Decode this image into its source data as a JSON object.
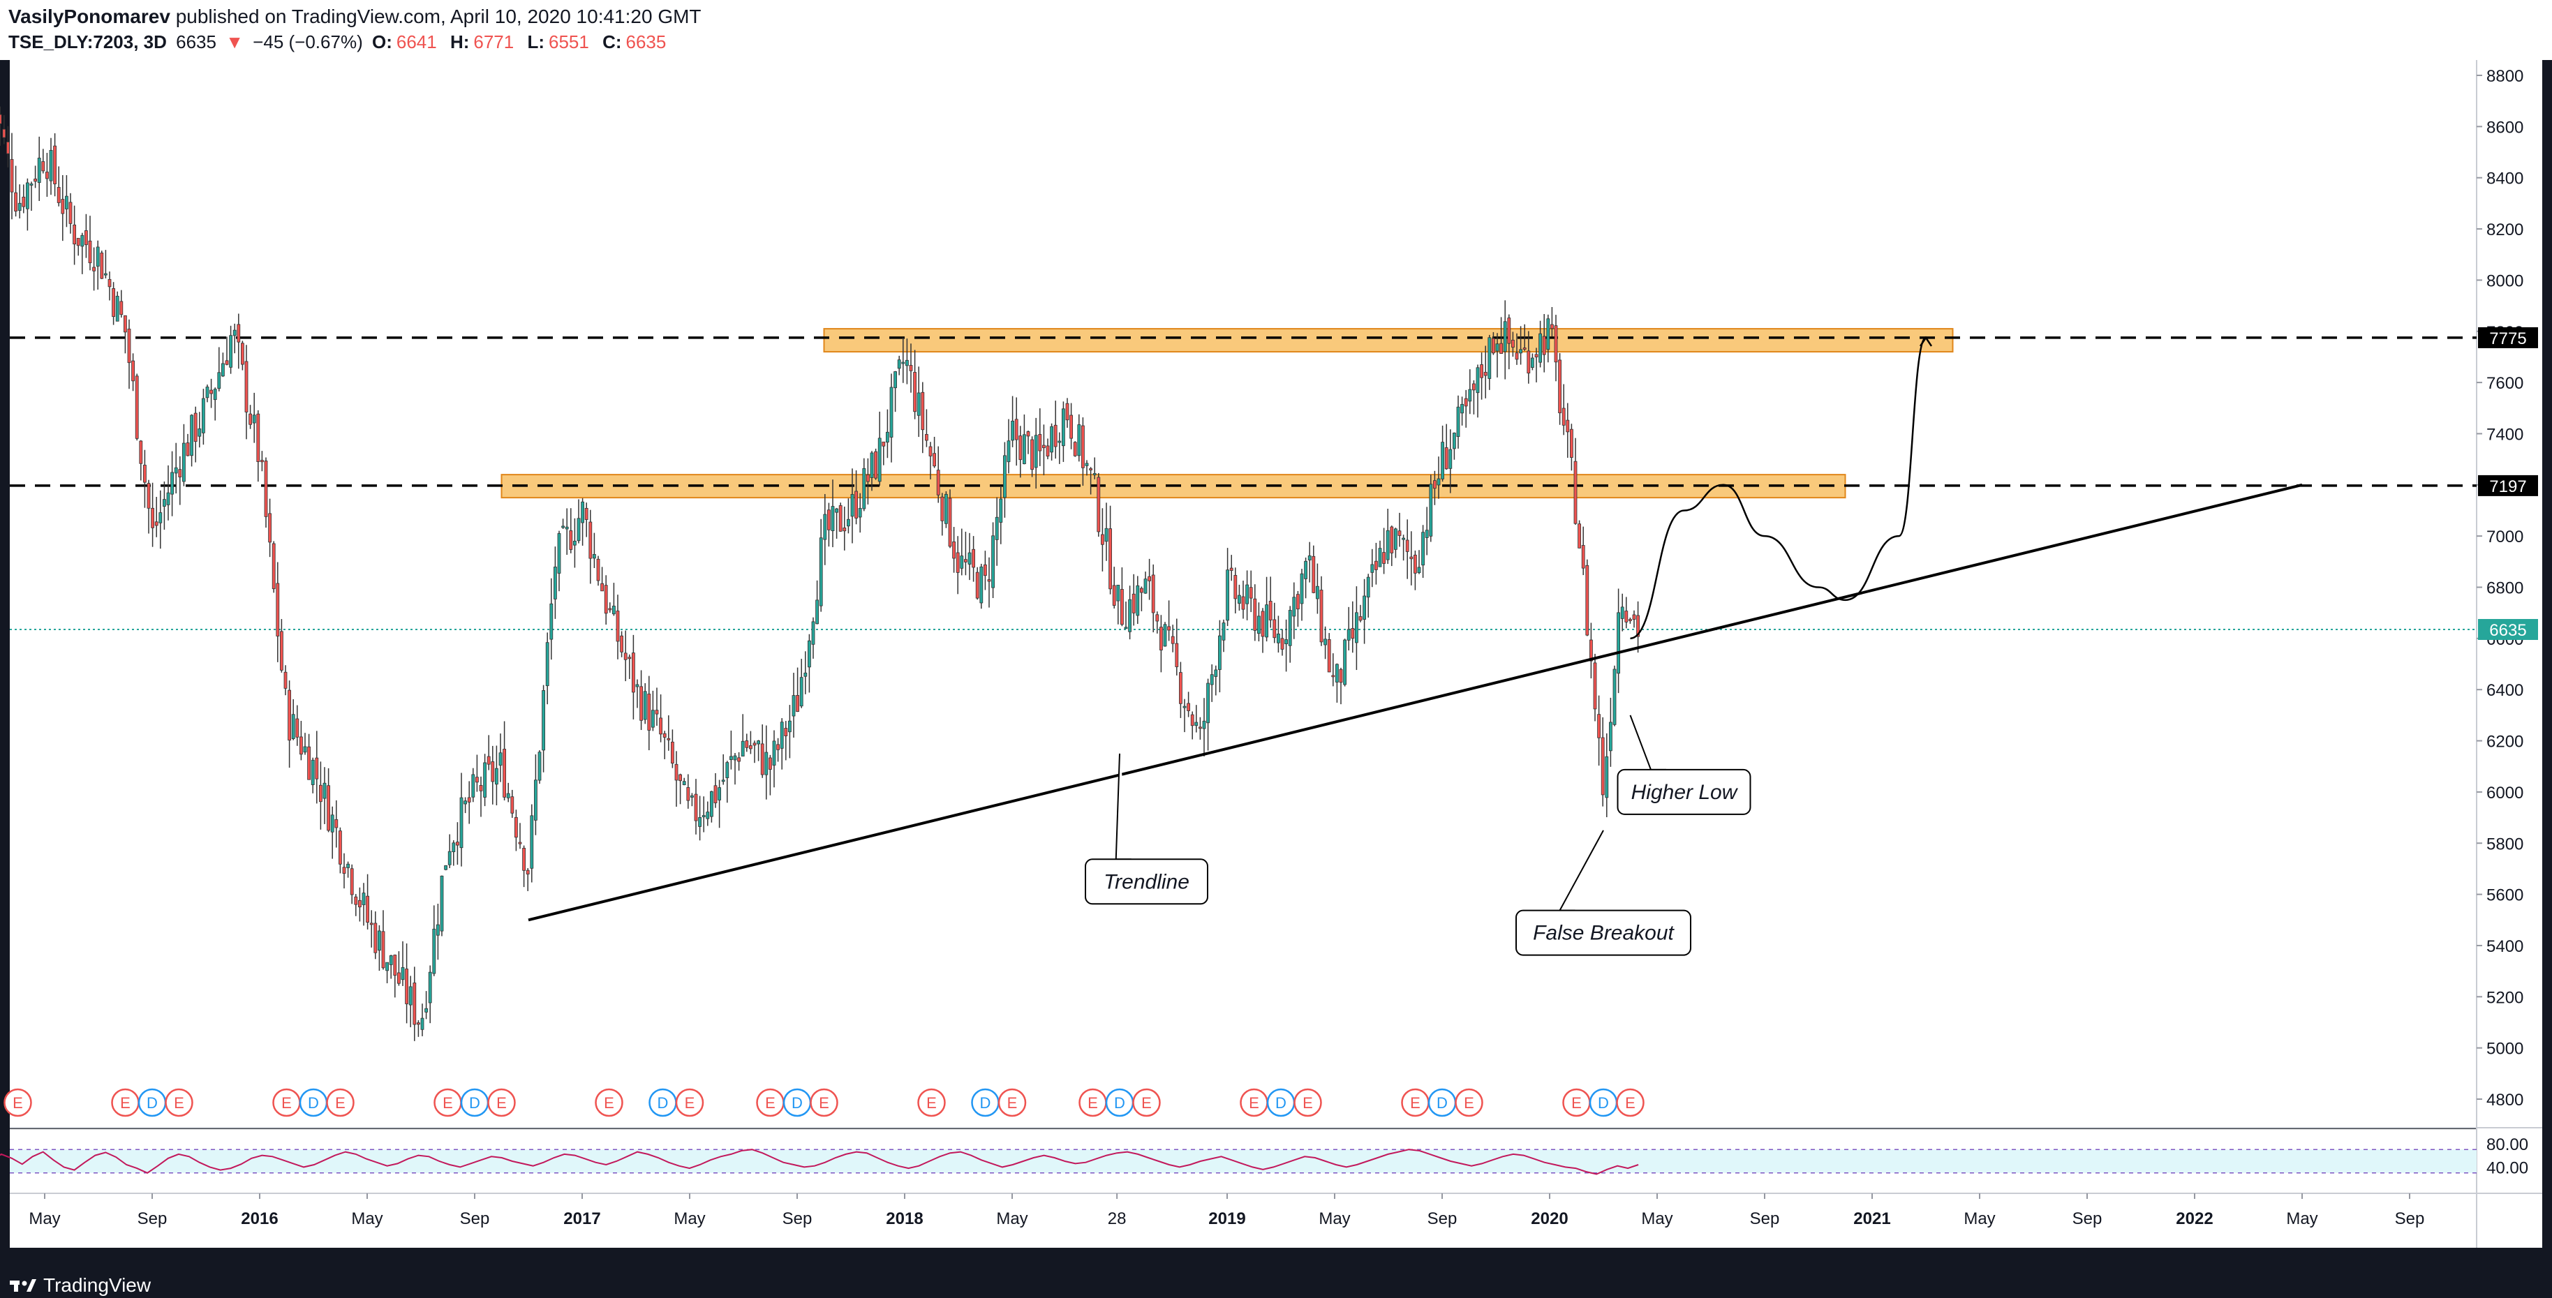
{
  "header": {
    "author": "VasilyPonomarev",
    "published": "published on TradingView.com, April 10, 2020 10:41:20 GMT",
    "symbol": "TSE_DLY:7203, 3D",
    "last": "6635",
    "change_arrow": "▼",
    "change": "−45 (−0.67%)",
    "o_label": "O:",
    "o_val": "6641",
    "h_label": "H:",
    "h_val": "6771",
    "l_label": "L:",
    "l_val": "6551",
    "c_label": "C:",
    "c_val": "6635"
  },
  "footer": {
    "brand": "TradingView"
  },
  "colors": {
    "up": "#26a69a",
    "down": "#ef5350",
    "zone_fill": "#f7b74f",
    "zone_stroke": "#e0861a",
    "rsi_line": "#c2185b",
    "rsi_band": "#e0f7fa",
    "price_line": "#26a69a",
    "earnings": "#ef5350",
    "dividend": "#2196f3"
  },
  "chart_data": {
    "type": "candlestick",
    "y_axis": {
      "min": 4700,
      "max": 8900,
      "ticks": [
        4800,
        5000,
        5200,
        5400,
        5600,
        5800,
        6000,
        6200,
        6400,
        6600,
        6800,
        7000,
        7200,
        7400,
        7600,
        7800,
        8000,
        8200,
        8400,
        8600,
        8800
      ]
    },
    "x_axis": {
      "labels": [
        {
          "t": "May",
          "date": "2015-05"
        },
        {
          "t": "Sep",
          "date": "2015-09"
        },
        {
          "t": "2016",
          "date": "2016-01"
        },
        {
          "t": "May",
          "date": "2016-05"
        },
        {
          "t": "Sep",
          "date": "2016-09"
        },
        {
          "t": "2017",
          "date": "2017-01"
        },
        {
          "t": "May",
          "date": "2017-05"
        },
        {
          "t": "Sep",
          "date": "2017-09"
        },
        {
          "t": "2018",
          "date": "2018-01"
        },
        {
          "t": "May",
          "date": "2018-05"
        },
        {
          "t": "28",
          "date": "2018-08-28"
        },
        {
          "t": "2019",
          "date": "2019-01"
        },
        {
          "t": "May",
          "date": "2019-05"
        },
        {
          "t": "Sep",
          "date": "2019-09"
        },
        {
          "t": "2020",
          "date": "2020-01"
        },
        {
          "t": "May",
          "date": "2020-05"
        },
        {
          "t": "Sep",
          "date": "2020-09"
        },
        {
          "t": "2021",
          "date": "2021-01"
        },
        {
          "t": "May",
          "date": "2021-05"
        },
        {
          "t": "Sep",
          "date": "2021-09"
        },
        {
          "t": "2022",
          "date": "2022-01"
        },
        {
          "t": "May",
          "date": "2022-05"
        },
        {
          "t": "Sep",
          "date": "2022-09"
        }
      ]
    },
    "price_path": [
      [
        "2015-03",
        8750
      ],
      [
        "2015-04",
        8300
      ],
      [
        "2015-05",
        8500
      ],
      [
        "2015-06",
        8200
      ],
      [
        "2015-07",
        8100
      ],
      [
        "2015-08",
        7800
      ],
      [
        "2015-09",
        7000
      ],
      [
        "2015-10",
        7300
      ],
      [
        "2015-11",
        7500
      ],
      [
        "2015-12",
        7800
      ],
      [
        "2016-01",
        7300
      ],
      [
        "2016-02",
        6300
      ],
      [
        "2016-03",
        6100
      ],
      [
        "2016-04",
        5800
      ],
      [
        "2016-05",
        5500
      ],
      [
        "2016-06",
        5300
      ],
      [
        "2016-07",
        5100
      ],
      [
        "2016-08",
        5800
      ],
      [
        "2016-09",
        6000
      ],
      [
        "2016-10",
        6100
      ],
      [
        "2016-11",
        5700
      ],
      [
        "2016-12",
        6900
      ],
      [
        "2017-01",
        7100
      ],
      [
        "2017-02",
        6700
      ],
      [
        "2017-03",
        6400
      ],
      [
        "2017-04",
        6200
      ],
      [
        "2017-05",
        5900
      ],
      [
        "2017-06",
        6000
      ],
      [
        "2017-07",
        6200
      ],
      [
        "2017-08",
        6100
      ],
      [
        "2017-09",
        6350
      ],
      [
        "2017-10",
        7000
      ],
      [
        "2017-11",
        7100
      ],
      [
        "2017-12",
        7300
      ],
      [
        "2018-01",
        7700
      ],
      [
        "2018-02",
        7300
      ],
      [
        "2018-03",
        6900
      ],
      [
        "2018-04",
        6800
      ],
      [
        "2018-05",
        7400
      ],
      [
        "2018-06",
        7300
      ],
      [
        "2018-07",
        7500
      ],
      [
        "2018-08",
        7200
      ],
      [
        "2018-09",
        6700
      ],
      [
        "2018-10",
        6800
      ],
      [
        "2018-11",
        6500
      ],
      [
        "2018-12",
        6200
      ],
      [
        "2019-01",
        6800
      ],
      [
        "2019-02",
        6700
      ],
      [
        "2019-03",
        6600
      ],
      [
        "2019-04",
        6900
      ],
      [
        "2019-05",
        6400
      ],
      [
        "2019-06",
        6700
      ],
      [
        "2019-07",
        7000
      ],
      [
        "2019-08",
        6900
      ],
      [
        "2019-09",
        7300
      ],
      [
        "2019-10",
        7500
      ],
      [
        "2019-11",
        7800
      ],
      [
        "2019-12",
        7700
      ],
      [
        "2020-01",
        7800
      ],
      [
        "2020-02",
        7100
      ],
      [
        "2020-03",
        6000
      ],
      [
        "2020-03-20",
        6800
      ],
      [
        "2020-04-10",
        6635
      ]
    ],
    "last_price": 6635,
    "price_labels": [
      {
        "t": "7775",
        "value": 7775
      },
      {
        "t": "7197",
        "value": 7197
      },
      {
        "t": "6635",
        "value": 6635
      }
    ],
    "resistance_zones": [
      {
        "from": "2017-10",
        "to": "2021-04",
        "low": 7720,
        "high": 7810
      },
      {
        "from": "2016-10",
        "to": "2020-12",
        "low": 7150,
        "high": 7240
      }
    ],
    "trendline": {
      "from": [
        "2016-11",
        5500
      ],
      "to": [
        "2022-05",
        7200
      ]
    },
    "projection": [
      [
        "2020-04",
        6600
      ],
      [
        "2020-06",
        7100
      ],
      [
        "2020-07-15",
        7200
      ],
      [
        "2020-09",
        7000
      ],
      [
        "2020-11",
        6800
      ],
      [
        "2020-12",
        6750
      ],
      [
        "2021-02",
        7000
      ],
      [
        "2021-03",
        7775
      ]
    ],
    "annotations": [
      {
        "text": "Trendline",
        "anchor": [
          "2018-09",
          6150
        ],
        "box": [
          "2018-10",
          5650
        ]
      },
      {
        "text": "False Breakout",
        "anchor": [
          "2020-03",
          5850
        ],
        "box": [
          "2020-03",
          5450
        ]
      },
      {
        "text": "Higher Low",
        "anchor": [
          "2020-04",
          6300
        ],
        "box": [
          "2020-06",
          6000
        ]
      }
    ],
    "events": [
      {
        "t": "D",
        "date": "2015-03"
      },
      {
        "t": "E",
        "date": "2015-04"
      },
      {
        "t": "E",
        "date": "2015-08"
      },
      {
        "t": "D",
        "date": "2015-09"
      },
      {
        "t": "E",
        "date": "2015-10"
      },
      {
        "t": "E",
        "date": "2016-02"
      },
      {
        "t": "D",
        "date": "2016-03"
      },
      {
        "t": "E",
        "date": "2016-04"
      },
      {
        "t": "E",
        "date": "2016-08"
      },
      {
        "t": "D",
        "date": "2016-09"
      },
      {
        "t": "E",
        "date": "2016-10"
      },
      {
        "t": "E",
        "date": "2017-02"
      },
      {
        "t": "D",
        "date": "2017-04"
      },
      {
        "t": "E",
        "date": "2017-05"
      },
      {
        "t": "E",
        "date": "2017-08"
      },
      {
        "t": "D",
        "date": "2017-09"
      },
      {
        "t": "E",
        "date": "2017-10"
      },
      {
        "t": "E",
        "date": "2018-02"
      },
      {
        "t": "D",
        "date": "2018-04"
      },
      {
        "t": "E",
        "date": "2018-05"
      },
      {
        "t": "E",
        "date": "2018-08"
      },
      {
        "t": "D",
        "date": "2018-09"
      },
      {
        "t": "E",
        "date": "2018-10"
      },
      {
        "t": "E",
        "date": "2019-02"
      },
      {
        "t": "D",
        "date": "2019-03"
      },
      {
        "t": "E",
        "date": "2019-04"
      },
      {
        "t": "E",
        "date": "2019-08"
      },
      {
        "t": "D",
        "date": "2019-09"
      },
      {
        "t": "E",
        "date": "2019-10"
      },
      {
        "t": "E",
        "date": "2020-02"
      },
      {
        "t": "D",
        "date": "2020-03"
      },
      {
        "t": "E",
        "date": "2020-04"
      }
    ],
    "rsi": {
      "ticks": [
        {
          "t": "80.00",
          "value": 80
        },
        {
          "t": "40.00",
          "value": 40
        }
      ],
      "band": [
        70,
        30
      ],
      "values": [
        50,
        62,
        55,
        45,
        58,
        66,
        52,
        40,
        35,
        48,
        60,
        65,
        57,
        44,
        38,
        30,
        42,
        55,
        62,
        58,
        48,
        40,
        35,
        38,
        45,
        55,
        60,
        58,
        52,
        46,
        40,
        44,
        52,
        60,
        66,
        62,
        54,
        48,
        42,
        46,
        54,
        60,
        58,
        50,
        44,
        40,
        46,
        52,
        58,
        56,
        50,
        46,
        42,
        48,
        56,
        62,
        60,
        54,
        48,
        44,
        50,
        58,
        66,
        62,
        56,
        48,
        42,
        38,
        44,
        52,
        58,
        62,
        68,
        70,
        64,
        56,
        48,
        44,
        40,
        42,
        48,
        56,
        62,
        66,
        64,
        56,
        48,
        42,
        38,
        42,
        50,
        58,
        64,
        66,
        60,
        52,
        46,
        40,
        44,
        50,
        56,
        60,
        56,
        50,
        46,
        48,
        54,
        60,
        64,
        66,
        62,
        56,
        50,
        44,
        40,
        44,
        50,
        54,
        58,
        52,
        46,
        40,
        36,
        40,
        46,
        52,
        58,
        56,
        50,
        44,
        40,
        44,
        50,
        56,
        62,
        66,
        70,
        68,
        62,
        56,
        50,
        46,
        42,
        46,
        52,
        58,
        62,
        60,
        54,
        48,
        44,
        40,
        38,
        32,
        28,
        36,
        42,
        38,
        44
      ]
    }
  }
}
